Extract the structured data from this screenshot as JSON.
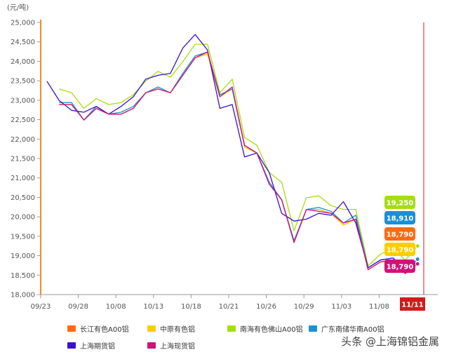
{
  "chart_data": {
    "type": "line",
    "unit_label": "(元/吨)",
    "x_tick_labels": [
      "09/23",
      "09/28",
      "10/08",
      "10/13",
      "10/18",
      "10/21",
      "10/26",
      "10/29",
      "11/03",
      "11/08"
    ],
    "highlight_date": "11/11",
    "ylim": [
      18000,
      25000
    ],
    "y_ticks": [
      18000,
      18500,
      19000,
      19500,
      20000,
      20500,
      21000,
      21500,
      22000,
      22500,
      23000,
      23500,
      24000,
      24500,
      25000
    ],
    "y_tick_labels": [
      "18,000",
      "18,500",
      "19,000",
      "19,500",
      "20,000",
      "20,500",
      "21,000",
      "21,500",
      "22,000",
      "22,500",
      "23,000",
      "23,500",
      "24,000",
      "24,500",
      "25,000"
    ],
    "series": [
      {
        "name": "长江有色A00铝",
        "color": "#ff6a13",
        "values": [
          null,
          22890,
          22890,
          22490,
          22790,
          22640,
          22640,
          22790,
          23190,
          23290,
          23190,
          23640,
          24090,
          24190,
          23090,
          23290,
          21790,
          21640,
          20840,
          20440,
          19340,
          20190,
          20190,
          20090,
          19790,
          19940,
          18640,
          18840,
          18890,
          18540,
          18790
        ]
      },
      {
        "name": "中原有色铝",
        "color": "#ffcc00",
        "values": [
          null,
          22890,
          22890,
          22490,
          22790,
          22640,
          22640,
          22790,
          23190,
          23290,
          23190,
          23640,
          24090,
          24190,
          23090,
          23290,
          21790,
          21640,
          20840,
          20440,
          19340,
          20190,
          20190,
          20090,
          19790,
          19940,
          18640,
          18840,
          18890,
          18540,
          18790
        ]
      },
      {
        "name": "南海有色佛山A00铝",
        "color": "#a6dd10",
        "values": [
          null,
          23290,
          23190,
          22790,
          23040,
          22890,
          22940,
          23140,
          23490,
          23740,
          23590,
          23990,
          24440,
          24440,
          23190,
          23540,
          22040,
          21840,
          21140,
          20890,
          19640,
          20490,
          20540,
          20290,
          20190,
          20190,
          18740,
          19040,
          19190,
          18890,
          19250
        ]
      },
      {
        "name": "广东南储华南A00铝",
        "color": "#1a90d6",
        "values": [
          null,
          22940,
          22940,
          22490,
          22840,
          22640,
          22690,
          22840,
          23190,
          23340,
          23190,
          23690,
          24140,
          24240,
          23140,
          23290,
          21840,
          21640,
          20890,
          20440,
          19390,
          20190,
          20240,
          20140,
          19840,
          20040,
          18690,
          18890,
          18940,
          18590,
          18910
        ]
      },
      {
        "name": "上海期货铝",
        "color": "#3a10d0",
        "values": [
          23490,
          22990,
          22740,
          22690,
          22840,
          22640,
          22840,
          23090,
          23540,
          23640,
          23690,
          24340,
          24690,
          24290,
          22790,
          22890,
          21540,
          21640,
          21140,
          20090,
          19890,
          19940,
          20090,
          20040,
          20390,
          19840,
          18690,
          18890,
          18940,
          18690,
          null
        ]
      },
      {
        "name": "上海现货铝",
        "color": "#d0127a",
        "values": [
          null,
          22890,
          22890,
          22490,
          22790,
          22640,
          22640,
          22790,
          23190,
          23290,
          23190,
          23640,
          24090,
          24240,
          23090,
          23340,
          21840,
          21640,
          20840,
          20440,
          19340,
          20190,
          20140,
          20090,
          19840,
          19940,
          18640,
          18840,
          18890,
          18540,
          18790
        ]
      }
    ],
    "end_labels": [
      {
        "text": "19,250",
        "color": "#a6dd10"
      },
      {
        "text": "18,910",
        "color": "#1a90d6"
      },
      {
        "text": "18,790",
        "color": "#ff6a13"
      },
      {
        "text": "18,790",
        "color": "#ffcc00"
      },
      {
        "text": "18,790",
        "color": "#d0127a"
      }
    ]
  },
  "watermark": "头条 @上海锦铝金属"
}
